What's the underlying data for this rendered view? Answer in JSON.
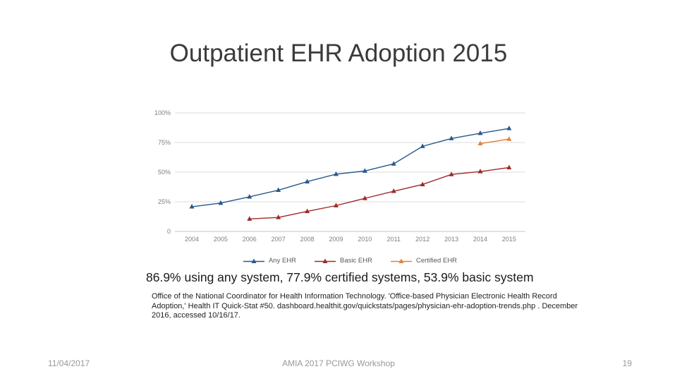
{
  "title": "Outpatient EHR Adoption 2015",
  "stat_line": "86.9% using any system, 77.9% certified systems, 53.9% basic system",
  "citation": "Office of the National Coordinator for Health Information Technology. 'Office-based Physician Electronic Health Record Adoption,' Health IT Quick-Stat #50.  dashboard.healthit.gov/quickstats/pages/physician-ehr-adoption-trends.php . December 2016, accessed 10/16/17.",
  "footer": {
    "date": "11/04/2017",
    "center": "AMIA 2017 PCIWG Workshop",
    "page_number": "19"
  },
  "chart_data": {
    "type": "line",
    "title": "",
    "xlabel": "",
    "ylabel": "",
    "categories": [
      "2004",
      "2005",
      "2006",
      "2007",
      "2008",
      "2009",
      "2010",
      "2011",
      "2012",
      "2013",
      "2014",
      "2015"
    ],
    "series": [
      {
        "name": "Any EHR",
        "color": "#27598d",
        "values": [
          20.8,
          23.9,
          29.2,
          34.8,
          42.0,
          48.3,
          51.0,
          57.0,
          71.8,
          78.4,
          82.8,
          86.9
        ]
      },
      {
        "name": "Basic EHR",
        "color": "#9c2b2a",
        "values": [
          null,
          null,
          10.5,
          11.8,
          16.9,
          21.8,
          27.9,
          33.9,
          39.6,
          48.1,
          50.5,
          53.9
        ]
      },
      {
        "name": "Certified EHR",
        "color": "#e0833c",
        "values": [
          null,
          null,
          null,
          null,
          null,
          null,
          null,
          null,
          null,
          null,
          74.1,
          77.9
        ]
      }
    ],
    "ylim": [
      0,
      100
    ],
    "yticks": [
      {
        "value": 0,
        "label": "0"
      },
      {
        "value": 25,
        "label": "25%"
      },
      {
        "value": 50,
        "label": "50%"
      },
      {
        "value": 75,
        "label": "75%"
      },
      {
        "value": 100,
        "label": "100%"
      }
    ],
    "grid": true,
    "marker": "triangle",
    "legend_position": "bottom",
    "colors": {
      "gridline": "#dcdcdc",
      "axis_line": "#c4c4c4",
      "tick_label": "#7f7f7f"
    }
  }
}
